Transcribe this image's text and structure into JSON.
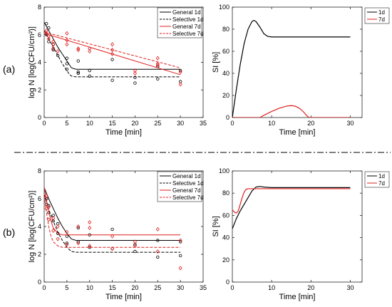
{
  "panel_labels": [
    "(a)",
    "(b)"
  ],
  "chart_data": [
    {
      "type": "scatter",
      "panel": "(a)",
      "xlabel": "Time [min]",
      "ylabel": "log N [log(CFU/cm²)]",
      "xlim": [
        0,
        35
      ],
      "ylim": [
        0,
        8
      ],
      "xticks": [
        0,
        5,
        10,
        15,
        20,
        25,
        30,
        35
      ],
      "yticks": [
        0,
        2,
        4,
        6,
        8
      ],
      "legend_position": "top-right",
      "grid": false,
      "series": [
        {
          "name": "General 1d",
          "color": "#000000",
          "dash": "solid",
          "marker": "circle",
          "fit": {
            "x": [
              0,
              1,
              2,
              3,
              4,
              5,
              5.5,
              6,
              7,
              10,
              15,
              20,
              25,
              30
            ],
            "y": [
              6.9,
              6.3,
              5.7,
              5.1,
              4.6,
              4.1,
              3.85,
              3.6,
              3.5,
              3.5,
              3.5,
              3.5,
              3.5,
              3.5
            ]
          },
          "points": {
            "x": [
              0.5,
              1,
              2,
              2,
              5,
              5,
              7.5,
              7.5,
              10,
              15,
              20,
              25,
              30
            ],
            "y": [
              6.8,
              6.5,
              5.3,
              4.9,
              4.3,
              3.9,
              4.1,
              3.2,
              3.4,
              4.2,
              2.9,
              3.7,
              3.4
            ]
          }
        },
        {
          "name": "Selective 1d",
          "color": "#000000",
          "dash": "dash",
          "marker": "circle",
          "fit": {
            "x": [
              0,
              1,
              2,
              3,
              4,
              5,
              5.5,
              6,
              7,
              10,
              15,
              20,
              25,
              30
            ],
            "y": [
              6.3,
              5.7,
              5.1,
              4.5,
              3.9,
              3.4,
              3.15,
              3.0,
              2.95,
              2.95,
              2.95,
              2.95,
              2.95,
              2.95
            ]
          },
          "points": {
            "x": [
              0.5,
              1,
              2,
              3,
              5,
              7.5,
              10,
              15,
              20,
              25,
              30
            ],
            "y": [
              6.0,
              5.5,
              5.0,
              4.5,
              3.5,
              3.3,
              3.0,
              2.7,
              2.5,
              2.8,
              2.6
            ]
          }
        },
        {
          "name": "General 7d",
          "color": "#e11f1f",
          "dash": "solid",
          "marker": "diamond",
          "fit": {
            "x": [
              0,
              30
            ],
            "y": [
              6.1,
              3.1
            ]
          },
          "points": {
            "x": [
              0.5,
              1,
              2,
              2,
              5,
              5,
              7.5,
              10,
              15,
              15,
              20,
              25,
              25,
              30
            ],
            "y": [
              6.3,
              5.9,
              5.5,
              5.0,
              6.1,
              5.3,
              4.9,
              5.0,
              5.3,
              4.6,
              3.4,
              4.3,
              3.8,
              3.3
            ]
          }
        },
        {
          "name": "Selective 7d",
          "color": "#e11f1f",
          "dash": "dash",
          "marker": "diamond",
          "fit": {
            "x": [
              0,
              30
            ],
            "y": [
              6.2,
              3.6
            ]
          },
          "points": {
            "x": [
              0.5,
              1,
              2,
              3,
              5,
              7.5,
              10,
              15,
              20,
              25,
              30
            ],
            "y": [
              6.1,
              5.7,
              5.3,
              4.8,
              5.6,
              5.0,
              4.8,
              4.9,
              3.2,
              3.9,
              2.4
            ]
          }
        }
      ]
    },
    {
      "type": "line",
      "panel": "(a)",
      "xlabel": "Time [min]",
      "ylabel": "SI [%]",
      "xlim": [
        0,
        33
      ],
      "ylim": [
        0,
        100
      ],
      "xticks": [
        0,
        10,
        20,
        30
      ],
      "yticks": [
        0,
        20,
        40,
        60,
        80,
        100
      ],
      "legend_position": "top-right",
      "grid": false,
      "series": [
        {
          "name": "1d",
          "color": "#000000",
          "x": [
            0,
            1,
            2,
            3,
            4,
            5,
            5.5,
            6,
            7,
            8,
            9,
            10,
            12,
            15,
            20,
            25,
            30
          ],
          "y": [
            0,
            25,
            48,
            67,
            80,
            87,
            88,
            87,
            82,
            76,
            73.5,
            73,
            73,
            73,
            73,
            73,
            73
          ]
        },
        {
          "name": "7d",
          "color": "#e11f1f",
          "x": [
            0,
            7,
            8,
            10,
            12,
            14,
            15,
            16,
            17,
            18,
            19,
            19.5,
            20,
            25,
            30
          ],
          "y": [
            0,
            0,
            2,
            5.5,
            8.5,
            10.5,
            10.8,
            10.3,
            8.5,
            5.5,
            1.5,
            0,
            0,
            0,
            0
          ]
        }
      ]
    },
    {
      "type": "scatter",
      "panel": "(b)",
      "xlabel": "Time [min]",
      "ylabel": "log N [log(CFU/cm²)]",
      "xlim": [
        0,
        35
      ],
      "ylim": [
        0,
        8
      ],
      "xticks": [
        0,
        5,
        10,
        15,
        20,
        25,
        30,
        35
      ],
      "yticks": [
        0,
        2,
        4,
        6,
        8
      ],
      "legend_position": "top-right",
      "grid": false,
      "series": [
        {
          "name": "General 1d",
          "color": "#000000",
          "dash": "solid",
          "marker": "circle",
          "fit": {
            "x": [
              0,
              1,
              2,
              3,
              4,
              5,
              6,
              7,
              10,
              15,
              20,
              25,
              30
            ],
            "y": [
              6.8,
              6.0,
              5.3,
              4.6,
              4.0,
              3.5,
              3.1,
              3.0,
              3.0,
              3.0,
              3.0,
              3.0,
              3.0
            ]
          },
          "points": {
            "x": [
              0.5,
              1,
              2,
              3,
              5,
              7.5,
              10,
              15,
              20,
              25,
              30
            ],
            "y": [
              6.0,
              5.5,
              4.8,
              4.2,
              3.3,
              3.9,
              3.4,
              3.8,
              2.7,
              3.0,
              2.9
            ]
          }
        },
        {
          "name": "Selective 1d",
          "color": "#000000",
          "dash": "dash",
          "marker": "circle",
          "fit": {
            "x": [
              0,
              1,
              2,
              3,
              4,
              5,
              6,
              7,
              10,
              15,
              20,
              25,
              30
            ],
            "y": [
              6.3,
              5.2,
              4.4,
              3.6,
              3.0,
              2.5,
              2.2,
              2.15,
              2.15,
              2.15,
              2.15,
              2.15,
              2.15
            ]
          },
          "points": {
            "x": [
              0.5,
              1,
              2,
              3,
              5,
              7.5,
              10,
              15,
              20,
              25,
              30
            ],
            "y": [
              5.6,
              5.0,
              4.4,
              3.5,
              2.8,
              2.9,
              2.5,
              2.4,
              2.2,
              1.8,
              1.9
            ]
          }
        },
        {
          "name": "General 7d",
          "color": "#e11f1f",
          "dash": "solid",
          "marker": "diamond",
          "fit": {
            "x": [
              0,
              0.5,
              1,
              1.5,
              2,
              3,
              4,
              5,
              7,
              10,
              15,
              20,
              25,
              30
            ],
            "y": [
              6.8,
              5.9,
              5.1,
              4.4,
              3.9,
              3.5,
              3.4,
              3.4,
              3.4,
              3.4,
              3.4,
              3.4,
              3.4,
              3.4
            ]
          },
          "points": {
            "x": [
              0.5,
              1,
              2,
              3,
              5,
              7.5,
              10,
              10,
              15,
              20,
              25,
              30
            ],
            "y": [
              6.2,
              5.4,
              4.6,
              4.0,
              3.6,
              4.0,
              4.3,
              3.9,
              3.3,
              2.9,
              3.8,
              3.0
            ]
          }
        },
        {
          "name": "Selective 7d",
          "color": "#e11f1f",
          "dash": "dash",
          "marker": "diamond",
          "fit": {
            "x": [
              0,
              0.5,
              1,
              1.5,
              2,
              3,
              4,
              5,
              7,
              10,
              15,
              20,
              25,
              30
            ],
            "y": [
              6.2,
              5.0,
              4.0,
              3.3,
              2.9,
              2.6,
              2.5,
              2.5,
              2.5,
              2.5,
              2.5,
              2.5,
              2.5,
              2.5
            ]
          },
          "points": {
            "x": [
              0.5,
              1,
              2,
              3,
              5,
              7.5,
              10,
              15,
              20,
              25,
              30
            ],
            "y": [
              5.3,
              4.5,
              3.7,
              3.1,
              2.7,
              2.8,
              2.6,
              2.4,
              2.6,
              2.2,
              1.0
            ]
          }
        }
      ]
    },
    {
      "type": "line",
      "panel": "(b)",
      "xlabel": "Time [min]",
      "ylabel": "SI [%]",
      "xlim": [
        0,
        33
      ],
      "ylim": [
        0,
        100
      ],
      "xticks": [
        0,
        10,
        20,
        30
      ],
      "yticks": [
        0,
        20,
        40,
        60,
        80,
        100
      ],
      "legend_position": "top-right",
      "grid": false,
      "series": [
        {
          "name": "1d",
          "color": "#000000",
          "x": [
            0,
            1,
            2,
            3,
            4,
            5,
            6,
            7,
            8,
            10,
            15,
            20,
            25,
            30
          ],
          "y": [
            48,
            57,
            64,
            70,
            76,
            82,
            85.5,
            86,
            85.5,
            85,
            85,
            85,
            85,
            85
          ]
        },
        {
          "name": "7d",
          "color": "#e11f1f",
          "x": [
            0,
            0.5,
            1,
            1.5,
            2,
            2.5,
            3,
            3.5,
            4,
            5,
            10,
            20,
            30
          ],
          "y": [
            65,
            63,
            62,
            64,
            70,
            76,
            81,
            83.5,
            84,
            84,
            84,
            84,
            84
          ]
        }
      ]
    }
  ]
}
